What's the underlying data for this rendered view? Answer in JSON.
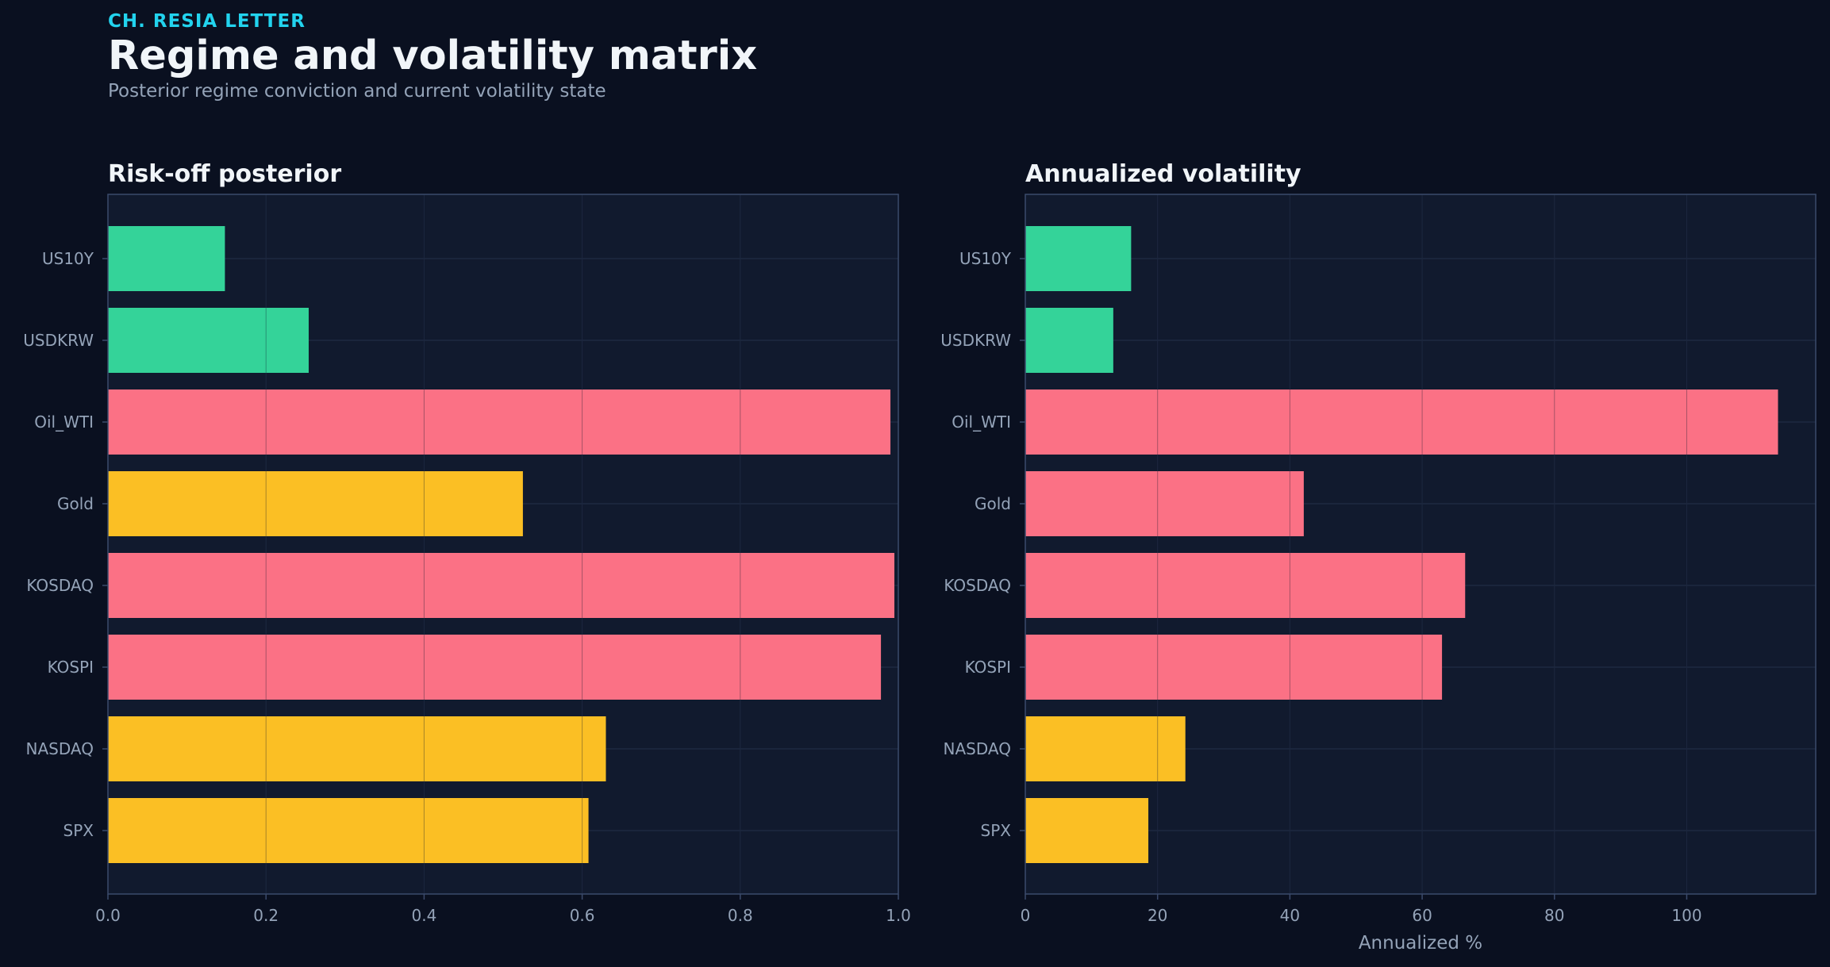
{
  "header": {
    "eyebrow": "CH. RESIA LETTER",
    "title": "Regime and volatility matrix",
    "subtitle": "Posterior regime conviction and current volatility state"
  },
  "colors": {
    "background": "#0a1020",
    "plot_background": "#111a2e",
    "risk_off": "#fb7185",
    "neutral": "#fbbf24",
    "risk_on": "#34d399",
    "axis": "#3b4a6b",
    "grid": "#243049",
    "tick_text": "#94a3b8"
  },
  "chart_data": [
    {
      "type": "bar",
      "orientation": "horizontal",
      "title": "Risk-off posterior",
      "xlabel": "",
      "ylabel": "",
      "categories": [
        "US10Y",
        "USDKRW",
        "Oil_WTI",
        "Gold",
        "KOSDAQ",
        "KOSPI",
        "NASDAQ",
        "SPX"
      ],
      "values": [
        0.148,
        0.254,
        0.99,
        0.525,
        0.995,
        0.978,
        0.63,
        0.608
      ],
      "bar_colors": [
        "#34d399",
        "#34d399",
        "#fb7185",
        "#fbbf24",
        "#fb7185",
        "#fb7185",
        "#fbbf24",
        "#fbbf24"
      ],
      "xlim": [
        0,
        1.0
      ],
      "xticks": [
        0.0,
        0.2,
        0.4,
        0.6,
        0.8,
        1.0
      ],
      "xtick_labels": [
        "0.0",
        "0.2",
        "0.4",
        "0.6",
        "0.8",
        "1.0"
      ],
      "grid": true
    },
    {
      "type": "bar",
      "orientation": "horizontal",
      "title": "Annualized volatility",
      "xlabel": "Annualized %",
      "ylabel": "",
      "categories": [
        "US10Y",
        "USDKRW",
        "Oil_WTI",
        "Gold",
        "KOSDAQ",
        "KOSPI",
        "NASDAQ",
        "SPX"
      ],
      "values": [
        16.0,
        13.3,
        113.8,
        42.1,
        66.5,
        63.0,
        24.2,
        18.6
      ],
      "bar_colors": [
        "#34d399",
        "#34d399",
        "#fb7185",
        "#fb7185",
        "#fb7185",
        "#fb7185",
        "#fbbf24",
        "#fbbf24"
      ],
      "xlim": [
        0,
        119.5
      ],
      "xticks": [
        0,
        20,
        40,
        60,
        80,
        100
      ],
      "xtick_labels": [
        "0",
        "20",
        "40",
        "60",
        "80",
        "100"
      ],
      "grid": true
    }
  ]
}
